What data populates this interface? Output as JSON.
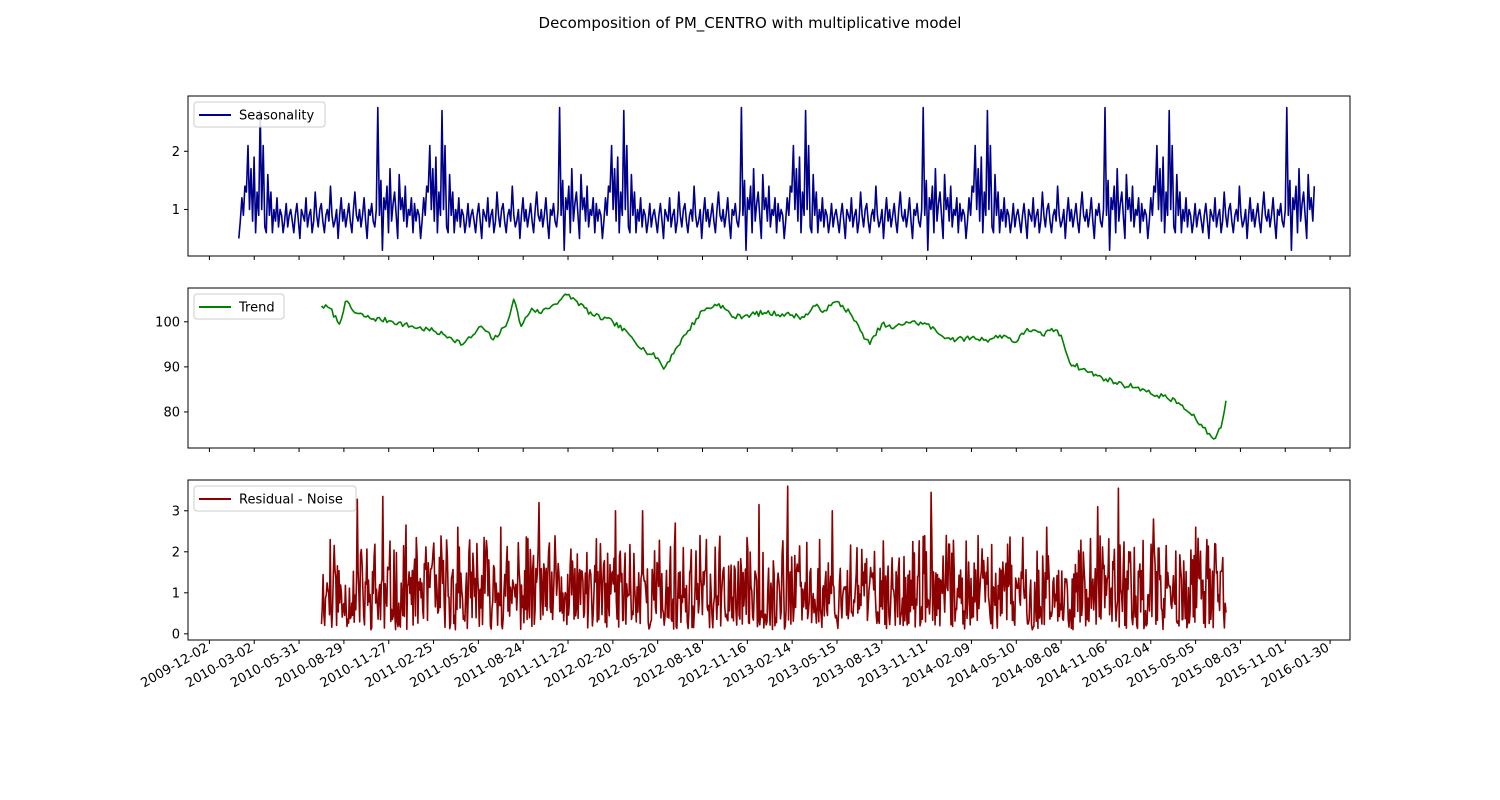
{
  "figure": {
    "title": "Decomposition of PM_CENTRO with multiplicative model"
  },
  "x_axis": {
    "type": "date",
    "range": [
      "2009-10-20",
      "2016-03-10"
    ],
    "tick_labels": [
      "2009-12-02",
      "2010-03-02",
      "2010-05-31",
      "2010-08-29",
      "2010-11-27",
      "2011-02-25",
      "2011-05-26",
      "2011-08-24",
      "2011-11-22",
      "2012-02-20",
      "2012-05-20",
      "2012-08-18",
      "2012-11-16",
      "2013-02-14",
      "2013-05-15",
      "2013-08-13",
      "2013-11-11",
      "2014-02-09",
      "2014-05-10",
      "2014-08-08",
      "2014-11-06",
      "2015-02-04",
      "2015-05-05",
      "2015-08-03",
      "2015-11-01",
      "2016-01-30"
    ]
  },
  "chart_data": [
    {
      "type": "line",
      "panel": "seasonality",
      "series_name": "Seasonality",
      "color": "#00008b",
      "legend_position": "upper-left",
      "ylim": [
        0.2,
        2.95
      ],
      "yticks": [
        "1",
        "2"
      ],
      "ytick_values": [
        1,
        2
      ],
      "x_start": "2010-01-30",
      "x_end": "2015-12-31",
      "season_start": "2010-01-30",
      "season_length_days": 365,
      "season_profile": [
        0.5,
        0.8,
        1.2,
        0.9,
        1.4,
        1.3,
        2.1,
        1.0,
        1.7,
        0.8,
        1.9,
        0.6,
        1.3,
        0.9,
        2.7,
        1.0,
        2.1,
        0.7,
        0.6,
        1.6,
        0.9,
        1.3,
        0.6,
        1.0,
        0.8,
        1.2,
        0.7,
        1.0,
        0.9,
        0.6,
        0.8,
        1.1,
        0.7,
        0.9,
        1.0,
        0.8,
        0.6,
        0.9,
        1.1,
        0.8,
        0.5,
        1.0,
        0.9,
        0.8,
        1.2,
        0.7,
        0.9,
        1.0,
        0.6,
        0.8,
        1.3,
        0.9,
        0.7,
        1.0,
        1.1,
        0.8,
        0.6,
        0.9,
        1.0,
        0.8,
        1.4,
        0.9,
        0.7,
        0.8,
        1.0,
        0.5,
        0.9,
        1.2,
        0.8,
        1.0,
        0.7,
        0.9,
        1.1,
        0.8,
        0.6,
        1.0,
        1.3,
        0.9,
        0.8,
        1.0,
        0.7,
        0.9,
        1.2,
        0.8,
        0.5,
        1.0,
        0.9,
        1.1,
        0.8,
        0.7,
        1.0,
        2.75,
        0.9,
        1.5,
        0.3,
        1.2,
        1.0,
        1.4,
        0.6,
        1.7,
        0.8,
        1.1,
        1.3,
        0.9,
        0.5,
        1.6,
        1.0,
        1.2,
        0.8,
        1.4,
        0.7,
        1.0,
        0.9,
        1.2,
        0.6,
        1.1,
        0.8,
        1.0,
        0.9
      ]
    },
    {
      "type": "line",
      "panel": "trend",
      "series_name": "Trend",
      "color": "#008000",
      "legend_position": "upper-left",
      "ylim": [
        72,
        107.5
      ],
      "yticks": [
        "80",
        "90",
        "100"
      ],
      "ytick_values": [
        80,
        90,
        100
      ],
      "x": [
        "2010-07-15",
        "2010-08-01",
        "2010-08-20",
        "2010-09-01",
        "2010-09-20",
        "2010-10-20",
        "2010-12-01",
        "2011-01-10",
        "2011-02-25",
        "2011-04-01",
        "2011-04-25",
        "2011-05-15",
        "2011-06-01",
        "2011-06-25",
        "2011-07-20",
        "2011-08-05",
        "2011-08-20",
        "2011-09-10",
        "2011-09-25",
        "2011-10-20",
        "2011-11-20",
        "2011-12-10",
        "2012-01-10",
        "2012-02-20",
        "2012-03-25",
        "2012-04-25",
        "2012-05-20",
        "2012-06-01",
        "2012-06-25",
        "2012-07-20",
        "2012-08-18",
        "2012-09-20",
        "2012-10-20",
        "2012-11-16",
        "2012-12-20",
        "2013-02-14",
        "2013-03-10",
        "2013-04-01",
        "2013-04-20",
        "2013-05-15",
        "2013-06-10",
        "2013-07-01",
        "2013-07-20",
        "2013-08-13",
        "2013-09-05",
        "2013-10-01",
        "2013-11-11",
        "2013-12-10",
        "2014-01-10",
        "2014-02-09",
        "2014-03-10",
        "2014-04-15",
        "2014-05-10",
        "2014-06-01",
        "2014-07-01",
        "2014-07-20",
        "2014-08-08",
        "2014-08-25",
        "2014-09-20",
        "2014-10-20",
        "2014-11-06",
        "2014-12-10",
        "2015-01-10",
        "2015-02-04",
        "2015-03-01",
        "2015-04-01",
        "2015-04-20",
        "2015-05-05",
        "2015-05-20",
        "2015-06-10",
        "2015-06-25",
        "2015-07-05"
      ],
      "values": [
        103.5,
        103,
        99.5,
        104.5,
        102,
        100.8,
        100.2,
        99,
        98,
        96.5,
        95,
        97,
        99,
        96,
        99,
        105,
        99,
        103,
        102,
        103.5,
        106,
        104.5,
        101.5,
        100,
        97,
        93.5,
        92,
        89.5,
        94,
        98,
        102.5,
        104,
        101,
        101.5,
        102,
        101.5,
        101,
        103.5,
        102.5,
        104.5,
        102,
        98,
        95,
        99.5,
        98.5,
        100,
        99.5,
        97,
        96,
        96.5,
        96,
        97,
        95.5,
        98.5,
        97,
        98.5,
        97,
        91,
        89.5,
        88,
        87.3,
        86,
        85.5,
        84,
        83.5,
        82,
        80,
        78.5,
        76.5,
        74,
        76.5,
        82.5
      ]
    },
    {
      "type": "line",
      "panel": "residual",
      "series_name": "Residual - Noise",
      "color": "#8b0000",
      "legend_position": "upper-left",
      "ylim": [
        -0.15,
        3.75
      ],
      "yticks": [
        "0",
        "1",
        "2",
        "3"
      ],
      "ytick_values": [
        0,
        1,
        2,
        3
      ],
      "x_start": "2010-07-15",
      "x_end": "2015-07-05",
      "baseline": 0.9,
      "range": [
        0.05,
        3.6
      ],
      "peaks": [
        {
          "x": "2010-08-01",
          "y": 2.3
        },
        {
          "x": "2010-09-25",
          "y": 3.28
        },
        {
          "x": "2010-11-15",
          "y": 3.35
        },
        {
          "x": "2011-01-01",
          "y": 2.65
        },
        {
          "x": "2011-04-15",
          "y": 2.6
        },
        {
          "x": "2011-07-10",
          "y": 2.6
        },
        {
          "x": "2011-09-25",
          "y": 3.2
        },
        {
          "x": "2011-12-05",
          "y": 3.15
        },
        {
          "x": "2012-02-25",
          "y": 3.0
        },
        {
          "x": "2012-04-20",
          "y": 3.0
        },
        {
          "x": "2012-06-25",
          "y": 2.7
        },
        {
          "x": "2012-09-10",
          "y": 2.65
        },
        {
          "x": "2012-12-10",
          "y": 3.15
        },
        {
          "x": "2013-02-05",
          "y": 3.6
        },
        {
          "x": "2013-05-05",
          "y": 3.0
        },
        {
          "x": "2013-08-20",
          "y": 2.6
        },
        {
          "x": "2013-11-20",
          "y": 3.45
        },
        {
          "x": "2014-02-20",
          "y": 3.0
        },
        {
          "x": "2014-04-25",
          "y": 2.95
        },
        {
          "x": "2014-07-10",
          "y": 2.6
        },
        {
          "x": "2014-10-20",
          "y": 3.1
        },
        {
          "x": "2014-12-01",
          "y": 3.55
        },
        {
          "x": "2015-02-10",
          "y": 2.8
        },
        {
          "x": "2015-05-05",
          "y": 2.6
        }
      ]
    }
  ]
}
